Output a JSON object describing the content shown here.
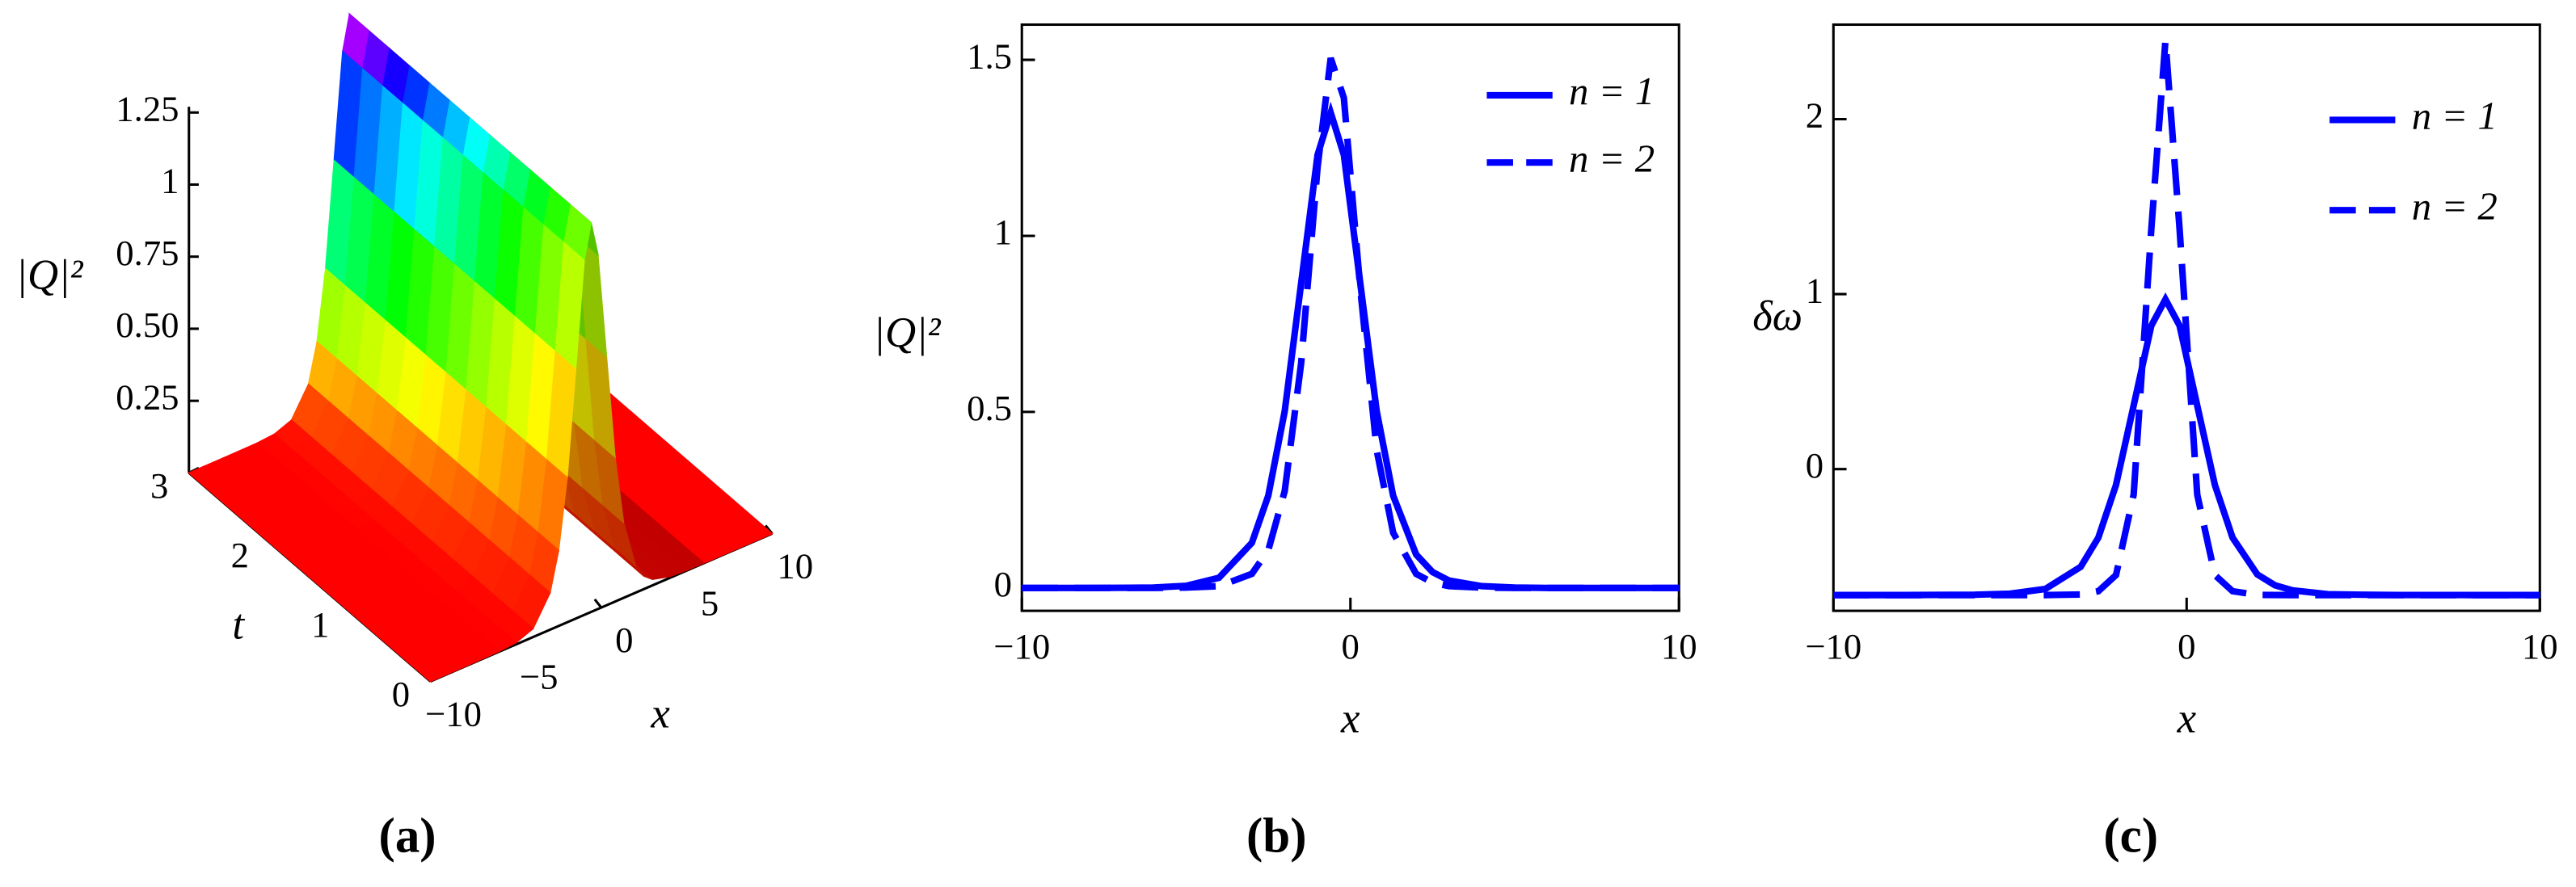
{
  "chart_data": [
    {
      "type": "surface",
      "caption": "(a)",
      "zlabel": "|Q|²",
      "tlabel": "t",
      "xlabel": "x",
      "x": [
        -10,
        -8,
        -6,
        -5,
        -4,
        -3,
        -2.5,
        -2,
        -1.5,
        -1,
        -0.6,
        -0.2,
        0.3,
        0.8,
        1.3,
        2,
        2.5,
        3,
        4,
        5,
        6,
        8,
        10
      ],
      "values": [
        0,
        0,
        0.001,
        0.006,
        0.029,
        0.128,
        0.262,
        0.502,
        0.865,
        1.23,
        1.35,
        1.23,
        0.865,
        0.502,
        0.262,
        0.095,
        0.045,
        0.021,
        0.005,
        0.001,
        0,
        0,
        0
      ],
      "xlim": [
        -10,
        10
      ],
      "xticks": [
        {
          "value": -10,
          "label": "−10"
        },
        {
          "value": -5,
          "label": "−5"
        },
        0,
        5,
        10
      ],
      "tlim": [
        0,
        3
      ],
      "tticks": [
        0,
        1,
        2,
        3
      ],
      "zlim": [
        0,
        1.27
      ],
      "zticks": [
        0.25,
        {
          "value": 0.5,
          "label": "0.50"
        },
        0.75,
        1,
        1.25
      ]
    },
    {
      "type": "line",
      "caption": "(b)",
      "ylabel": "|Q|²",
      "xlabel": "x",
      "x": [
        -10,
        -8,
        -6,
        -5,
        -4,
        -3,
        -2.5,
        -2,
        -1.5,
        -1,
        -0.6,
        -0.2,
        0.3,
        0.8,
        1.3,
        2,
        2.5,
        3,
        4,
        5,
        6,
        8,
        10
      ],
      "series": [
        {
          "name": "n = 1",
          "color": "#0000ff",
          "dash": "solid",
          "values": [
            0,
            0,
            0.001,
            0.006,
            0.029,
            0.128,
            0.262,
            0.502,
            0.865,
            1.23,
            1.35,
            1.23,
            0.865,
            0.502,
            0.262,
            0.095,
            0.045,
            0.021,
            0.005,
            0.001,
            0,
            0,
            0
          ]
        },
        {
          "name": "n = 2",
          "color": "#0000ff",
          "dash": "dashed",
          "values": [
            0,
            0,
            0,
            0.001,
            0.005,
            0.04,
            0.107,
            0.275,
            0.638,
            1.195,
            1.505,
            1.392,
            0.85,
            0.391,
            0.157,
            0.04,
            0.015,
            0.005,
            0.001,
            0,
            0,
            0,
            0
          ]
        }
      ],
      "xlim": [
        -10,
        10
      ],
      "xticks": [
        {
          "value": -10,
          "label": "−10"
        },
        0,
        10
      ],
      "ylim": [
        -0.065,
        1.6
      ],
      "yticks": [
        0,
        0.5,
        1,
        1.5
      ]
    },
    {
      "type": "line",
      "caption": "(c)",
      "ylabel": "δω",
      "xlabel": "x",
      "x": [
        -10,
        -8,
        -6,
        -5,
        -4,
        -3,
        -2.5,
        -2,
        -1.5,
        -1,
        -0.6,
        -0.2,
        0.3,
        0.8,
        1.3,
        2,
        2.5,
        3,
        4,
        5,
        6,
        8,
        10
      ],
      "series": [
        {
          "name": "n = 1",
          "color": "#0000ff",
          "dash": "solid",
          "values": [
            -0.72,
            -0.72,
            -0.718,
            -0.712,
            -0.685,
            -0.559,
            -0.392,
            -0.091,
            0.363,
            0.82,
            0.97,
            0.82,
            0.363,
            -0.091,
            -0.392,
            -0.602,
            -0.664,
            -0.693,
            -0.715,
            -0.718,
            -0.72,
            -0.72,
            -0.72
          ]
        },
        {
          "name": "n = 2",
          "color": "#0000ff",
          "dash": "dashed",
          "values": [
            -0.72,
            -0.72,
            -0.72,
            -0.72,
            -0.72,
            -0.717,
            -0.698,
            -0.606,
            -0.146,
            1.372,
            2.45,
            1.372,
            -0.146,
            -0.606,
            -0.698,
            -0.719,
            -0.72,
            -0.72,
            -0.72,
            -0.72,
            -0.72,
            -0.72,
            -0.72
          ]
        }
      ],
      "xlim": [
        -10,
        10
      ],
      "xticks": [
        {
          "value": -10,
          "label": "−10"
        },
        0,
        10
      ],
      "ylim": [
        -0.81,
        2.54
      ],
      "yticks": [
        0,
        1,
        2
      ]
    }
  ]
}
